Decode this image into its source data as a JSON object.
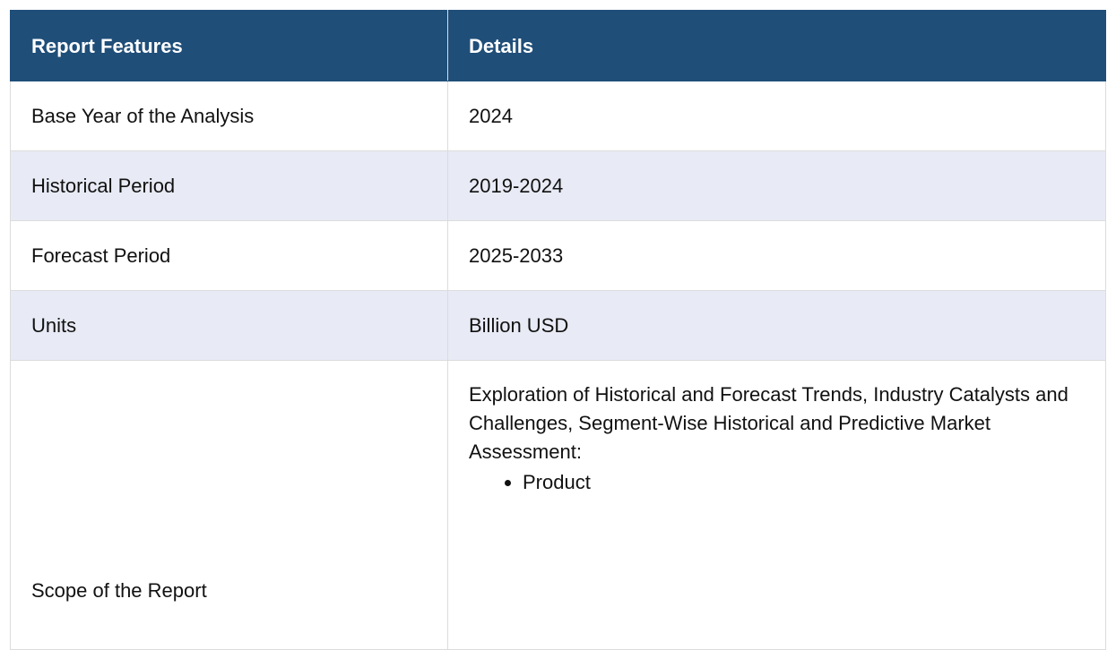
{
  "table": {
    "headers": {
      "feature": "Report Features",
      "details": "Details"
    },
    "rows": [
      {
        "feature": "Base Year of the Analysis",
        "details": "2024"
      },
      {
        "feature": "Historical Period",
        "details": "2019-2024"
      },
      {
        "feature": "Forecast Period",
        "details": "2025-2033"
      },
      {
        "feature": "Units",
        "details": "Billion USD"
      }
    ],
    "scope": {
      "feature": "Scope of the Report",
      "details": "Exploration of Historical and Forecast Trends, Industry Catalysts and Challenges, Segment-Wise Historical and Predictive Market Assessment:",
      "items": [
        "Product"
      ]
    }
  },
  "colors": {
    "header_bg": "#1f4e79",
    "alt_row_bg": "#e8eaf5",
    "border": "#dcdcdc"
  }
}
